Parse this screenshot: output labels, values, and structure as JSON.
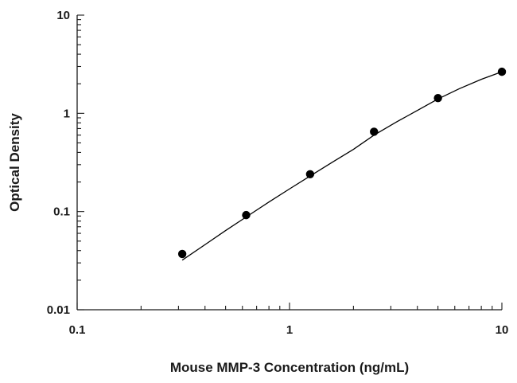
{
  "chart_data": {
    "type": "scatter",
    "xlabel": "Mouse MMP-3 Concentration (ng/mL)",
    "ylabel": "Optical Density",
    "x_scale": "log",
    "y_scale": "log",
    "xlim": [
      0.1,
      10
    ],
    "ylim": [
      0.01,
      10
    ],
    "x_ticks": [
      "0.1",
      "1",
      "10"
    ],
    "y_ticks": [
      "0.01",
      "0.1",
      "1",
      "10"
    ],
    "grid": false,
    "legend": "none",
    "series": [
      {
        "x": [
          0.3125,
          0.625,
          1.25,
          2.5,
          5,
          10
        ],
        "y": [
          0.037,
          0.092,
          0.24,
          0.65,
          1.43,
          2.65
        ],
        "marker_color": "#000000"
      }
    ],
    "fit_curve": {
      "x": [
        0.3125,
        0.4,
        0.5,
        0.625,
        0.8,
        1.0,
        1.25,
        1.6,
        2.0,
        2.5,
        3.2,
        4.0,
        5.0,
        6.3,
        8.0,
        10
      ],
      "y": [
        0.032,
        0.046,
        0.064,
        0.088,
        0.125,
        0.17,
        0.23,
        0.32,
        0.43,
        0.6,
        0.82,
        1.07,
        1.4,
        1.78,
        2.22,
        2.65
      ],
      "color": "#000000"
    }
  }
}
